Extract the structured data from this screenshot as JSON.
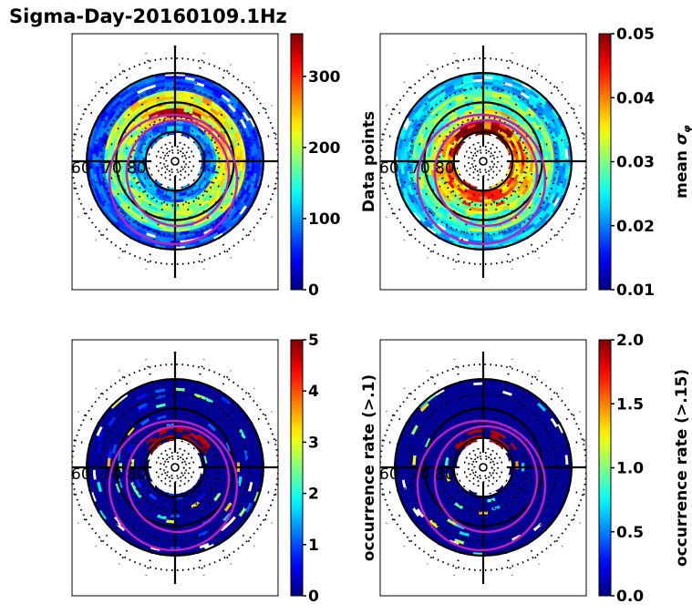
{
  "figure": {
    "title": "Sigma-Day-20160109.1Hz"
  },
  "chart_data": [
    {
      "type": "heatmap",
      "projection": "polar (magnetic latitude / MLT)",
      "panel": "top-left",
      "colorbar_label": "Data points",
      "colormap": "jet",
      "clim": [
        0,
        360
      ],
      "colorbar_ticks": [
        "0",
        "100",
        "200",
        "300"
      ],
      "colorbar_tick_values": [
        0,
        100,
        200,
        300
      ],
      "latitude_labels": [
        "60",
        "70",
        "80"
      ],
      "latitude_circles": [
        60,
        70,
        80
      ],
      "description": "Counts per bin; mostly 50-150 with higher (200-350) values near 70-75 deg on dawn/noon side",
      "bin_samples": [
        {
          "region": "outer ring 60-65",
          "value": 60
        },
        {
          "region": "70-75 noon/dawn",
          "value": 250
        },
        {
          "region": "72 pre-noon peak",
          "value": 340
        },
        {
          "region": "75-80 nightside",
          "value": 80
        },
        {
          "region": "dusk 68-72",
          "value": 220
        }
      ],
      "overlay": "auroral oval boundaries (magenta)"
    },
    {
      "type": "heatmap",
      "projection": "polar (magnetic latitude / MLT)",
      "panel": "top-right",
      "colorbar_label": "mean σφ",
      "colormap": "jet",
      "clim": [
        0.01,
        0.05
      ],
      "colorbar_ticks": [
        "0.01",
        "0.02",
        "0.03",
        "0.04",
        "0.05"
      ],
      "colorbar_tick_values": [
        0.01,
        0.02,
        0.03,
        0.04,
        0.05
      ],
      "latitude_labels": [
        "60",
        "70",
        "80"
      ],
      "latitude_circles": [
        60,
        70,
        80
      ],
      "description": "Mean phase scintillation index; ~0.02 at low latitudes, rising to 0.04-0.05 inside the auroral oval near 75-80 deg",
      "bin_samples": [
        {
          "region": "outer ring 60-65",
          "value": 0.021
        },
        {
          "region": "65-70",
          "value": 0.026
        },
        {
          "region": "72-76",
          "value": 0.034
        },
        {
          "region": "77-80 noon",
          "value": 0.05
        },
        {
          "region": "77-80 night",
          "value": 0.042
        }
      ],
      "overlay": "auroral oval boundaries (magenta)"
    },
    {
      "type": "heatmap",
      "projection": "polar (magnetic latitude / MLT)",
      "panel": "bottom-left",
      "colorbar_label": "occurrence rate (>.1)",
      "colormap": "jet",
      "clim": [
        0,
        5
      ],
      "colorbar_ticks": [
        "0",
        "1",
        "2",
        "3",
        "4",
        "5"
      ],
      "colorbar_tick_values": [
        0,
        1,
        2,
        3,
        4,
        5
      ],
      "latitude_labels": [
        "60",
        "70",
        "80"
      ],
      "latitude_circles": [
        60,
        70,
        80
      ],
      "description": "Occurrence rate of σφ > 0.1 (%); near zero everywhere except scattered high values (4-5%) near 76-80 deg noon",
      "bin_samples": [
        {
          "region": "background",
          "value": 0
        },
        {
          "region": "76-80 noon",
          "value": 5
        },
        {
          "region": "scattered 70-75",
          "value": 1.5
        },
        {
          "region": "nightside patches",
          "value": 2.5
        }
      ],
      "overlay": "auroral oval boundaries (magenta)"
    },
    {
      "type": "heatmap",
      "projection": "polar (magnetic latitude / MLT)",
      "panel": "bottom-right",
      "colorbar_label": "occurrence rate (>.15)",
      "colormap": "jet",
      "clim": [
        0.0,
        2.0
      ],
      "colorbar_ticks": [
        "0.0",
        "0.5",
        "1.0",
        "1.5",
        "2.0"
      ],
      "colorbar_tick_values": [
        0.0,
        0.5,
        1.0,
        1.5,
        2.0
      ],
      "latitude_labels": [
        "60",
        "70",
        "80"
      ],
      "latitude_circles": [
        60,
        70,
        80
      ],
      "description": "Occurrence rate of σφ > 0.15 (%); near zero except a few high bins (~2%) near 77-80 deg noon",
      "bin_samples": [
        {
          "region": "background",
          "value": 0
        },
        {
          "region": "77-80 noon",
          "value": 2.0
        },
        {
          "region": "scattered",
          "value": 0.8
        }
      ],
      "overlay": "auroral oval boundaries (magenta)"
    }
  ]
}
